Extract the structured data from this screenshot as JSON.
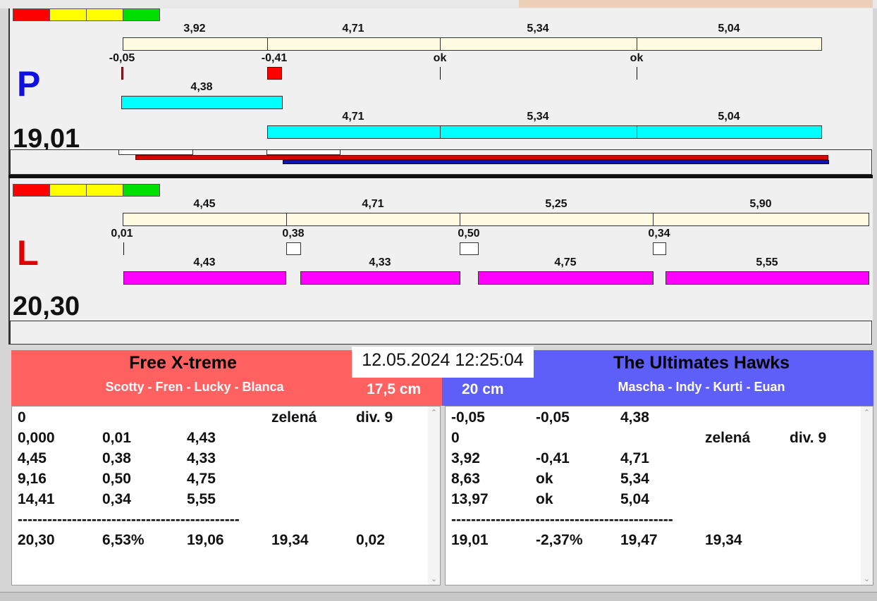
{
  "top": {
    "letter": "P",
    "total": "19,01",
    "run_labels": [
      "3,92",
      "4,71",
      "5,34",
      "5,04"
    ],
    "start_labels": [
      "-0,05",
      "-0,41",
      "ok",
      "ok"
    ],
    "leg1_label": "4,38",
    "leg_labels": [
      "4,71",
      "5,34",
      "5,04"
    ]
  },
  "bottom": {
    "letter": "L",
    "total": "20,30",
    "run_labels": [
      "4,45",
      "4,71",
      "5,25",
      "5,90"
    ],
    "start_labels": [
      "0,01",
      "0,38",
      "0,50",
      "0,34"
    ],
    "leg_labels": [
      "4,43",
      "4,33",
      "4,75",
      "5,55"
    ]
  },
  "datetime": "12.05.2024 12:25:04",
  "left_team": {
    "name": "Free X-treme",
    "members": "Scotty - Fren - Lucky - Blanca",
    "height": "17,5 cm",
    "rows": [
      [
        "0",
        "",
        "",
        "zelená",
        "div. 9"
      ],
      [
        "0,000",
        "0,01",
        "4,43",
        "",
        ""
      ],
      [
        "4,45",
        "0,38",
        "4,33",
        "",
        ""
      ],
      [
        "9,16",
        "0,50",
        "4,75",
        "",
        ""
      ],
      [
        "14,41",
        "0,34",
        "5,55",
        "",
        ""
      ],
      [
        "---------------------------------------------",
        "",
        "",
        "",
        ""
      ],
      [
        "20,30",
        "6,53%",
        "19,06",
        "19,34",
        "0,02"
      ]
    ]
  },
  "right_team": {
    "name": "The Ultimates Hawks",
    "members": "Mascha - Indy - Kurti - Euan",
    "height": "20 cm",
    "rows": [
      [
        "-0,05",
        "-0,05",
        "4,38",
        "",
        ""
      ],
      [
        "0",
        "",
        "",
        "zelená",
        "div. 9"
      ],
      [
        "3,92",
        "-0,41",
        "4,71",
        "",
        ""
      ],
      [
        "8,63",
        "ok",
        "5,34",
        "",
        ""
      ],
      [
        "13,97",
        "ok",
        "5,04",
        "",
        ""
      ],
      [
        "---------------------------------------------",
        "",
        "",
        "",
        ""
      ],
      [
        "19,01",
        "-2,37%",
        "19,47",
        "19,34",
        ""
      ]
    ]
  },
  "colors": {
    "left_team_bg": "#ff6060",
    "right_team_bg": "#5e5ef8",
    "cyan": "#00ffff",
    "magenta": "#ff00ff",
    "cream": "#fffbe0",
    "red_line": "#e00000",
    "blue_line": "#1010c0"
  }
}
